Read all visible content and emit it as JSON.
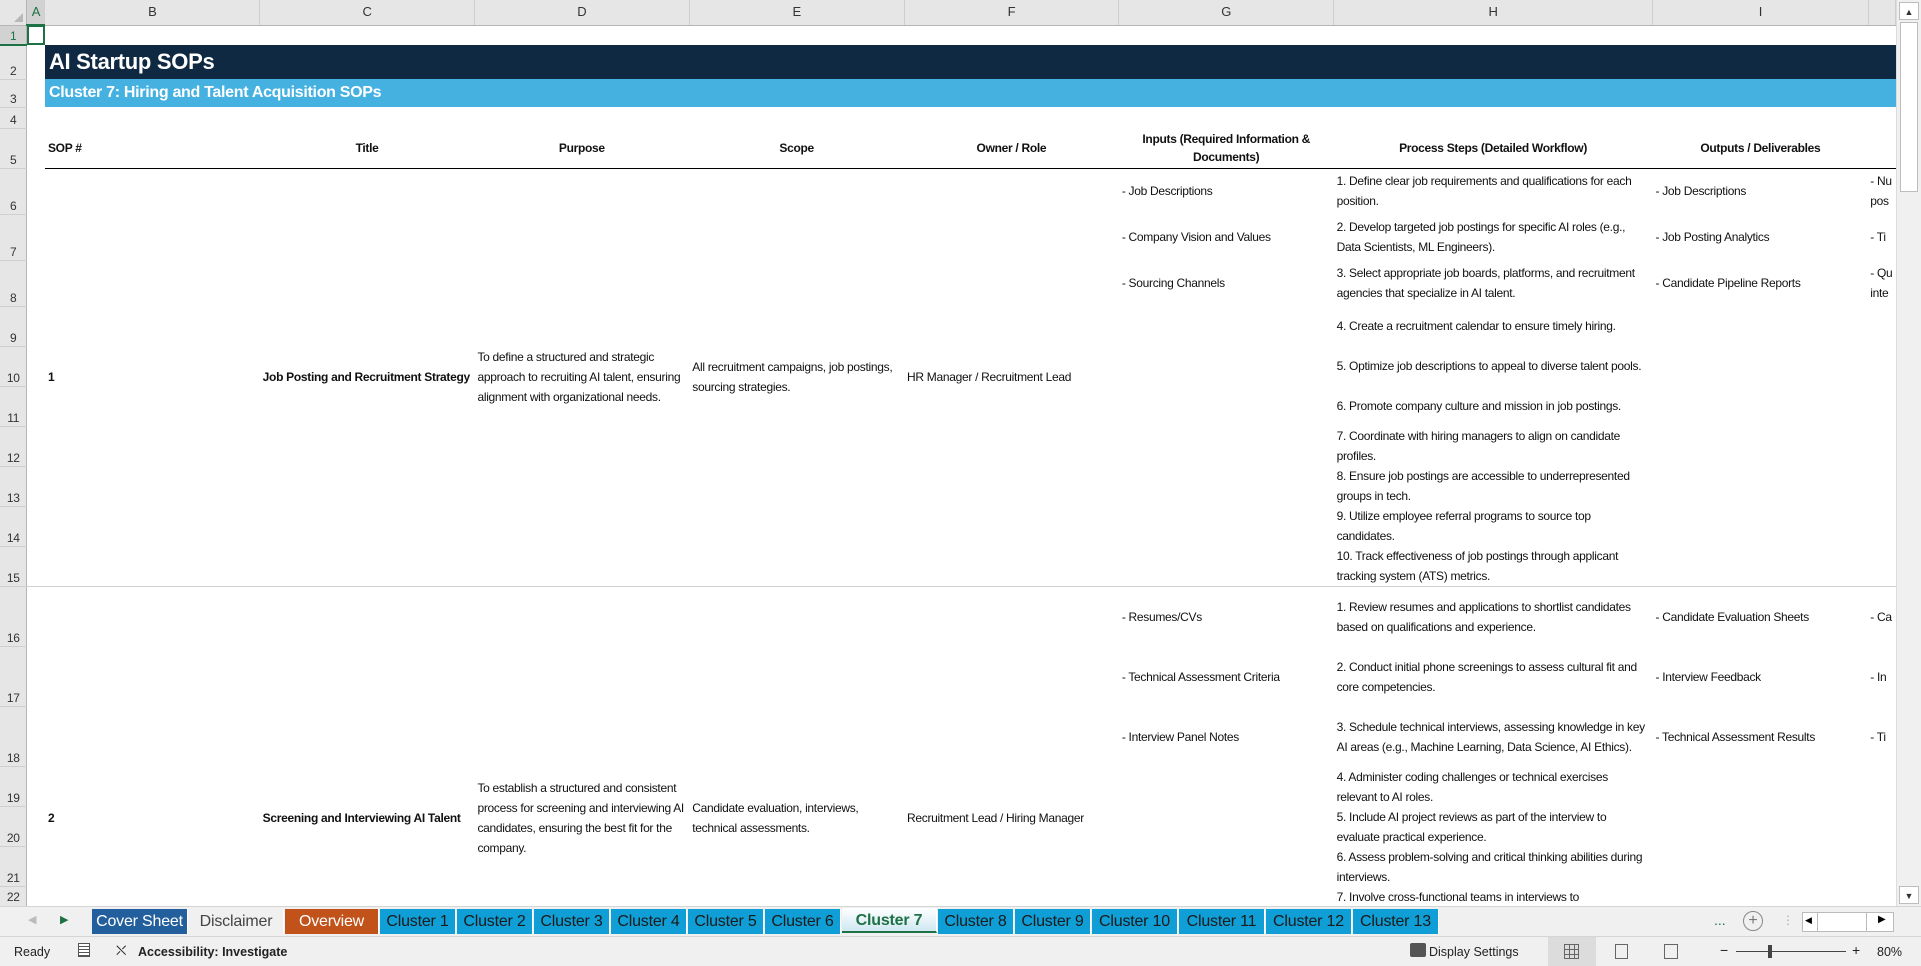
{
  "sheet": {
    "columns": [
      "A",
      "B",
      "C",
      "D",
      "E",
      "F",
      "G",
      "H",
      "I",
      ""
    ],
    "title": "AI Startup SOPs",
    "subtitle": "Cluster 7: Hiring and Talent Acquisition SOPs",
    "headers": [
      "SOP #",
      "Title",
      "Purpose",
      "Scope",
      "Owner / Role",
      "Inputs (Required Information & Documents)",
      "Process Steps (Detailed Workflow)",
      "Outputs / Deliverables"
    ],
    "sops": [
      {
        "number": "1",
        "title": "Job Posting and Recruitment Strategy",
        "purpose": "To define a structured and strategic approach to recruiting AI talent, ensuring alignment with organizational needs.",
        "scope": "All recruitment campaigns, job postings, sourcing strategies.",
        "owner": "HR Manager / Recruitment Lead",
        "inputs": [
          "- Job Descriptions",
          "- Company Vision and Values",
          "- Sourcing Channels"
        ],
        "steps": [
          "1. Define clear job requirements and qualifications for each position.",
          "2. Develop targeted job postings for specific AI roles (e.g., Data Scientists, ML Engineers).",
          "3. Select appropriate job boards, platforms, and recruitment agencies that specialize in AI talent.",
          "4. Create a recruitment calendar to ensure timely hiring.",
          "5. Optimize job descriptions to appeal to diverse talent pools.",
          "6. Promote company culture and mission in job postings.",
          "7. Coordinate with hiring managers to align on candidate profiles.",
          "8. Ensure job postings are accessible to underrepresented groups in tech.",
          "9. Utilize employee referral programs to source top candidates.",
          "10. Track effectiveness of job postings through applicant tracking system (ATS) metrics."
        ],
        "outputs": [
          "- Job Descriptions",
          "- Job Posting Analytics",
          "- Candidate Pipeline Reports"
        ],
        "next_col_fragments": [
          "- Nu\npos",
          "- Ti",
          "- Qu\ninte"
        ]
      },
      {
        "number": "2",
        "title": "Screening and Interviewing AI Talent",
        "purpose": "To establish a structured and consistent process for screening and interviewing AI candidates, ensuring the best fit for the company.",
        "scope": "Candidate evaluation, interviews, technical assessments.",
        "owner": "Recruitment Lead / Hiring Manager",
        "inputs": [
          "- Resumes/CVs",
          "- Technical Assessment Criteria",
          "- Interview Panel Notes"
        ],
        "steps": [
          "1. Review resumes and applications to shortlist candidates based on qualifications and experience.",
          "2. Conduct initial phone screenings to assess cultural fit and core competencies.",
          "3. Schedule technical interviews, assessing knowledge in key AI areas (e.g., Machine Learning, Data Science, AI Ethics).",
          "4. Administer coding challenges or technical exercises relevant to AI roles.",
          "5. Include AI project reviews as part of the interview to evaluate practical experience.",
          "6. Assess problem-solving and critical thinking abilities during interviews.",
          "7. Involve cross-functional teams in interviews to"
        ],
        "outputs": [
          "- Candidate Evaluation Sheets",
          "- Interview Feedback",
          "- Technical Assessment Results"
        ],
        "next_col_fragments": [
          "- Ca",
          "- In",
          "- Ti"
        ]
      }
    ]
  },
  "tabs": {
    "items": [
      {
        "label": "Cover Sheet",
        "color": "#235f9c",
        "text": "#ffffff"
      },
      {
        "label": "Disclaimer",
        "color": "#f0f0f0",
        "text": "#444444"
      },
      {
        "label": "Overview",
        "color": "#c0521a",
        "text": "#ffffff"
      },
      {
        "label": "Cluster 1"
      },
      {
        "label": "Cluster 2"
      },
      {
        "label": "Cluster 3"
      },
      {
        "label": "Cluster 4"
      },
      {
        "label": "Cluster 5"
      },
      {
        "label": "Cluster 6"
      },
      {
        "label": "Cluster 7",
        "active": true
      },
      {
        "label": "Cluster 8"
      },
      {
        "label": "Cluster 9"
      },
      {
        "label": "Cluster 10"
      },
      {
        "label": "Cluster 11"
      },
      {
        "label": "Cluster 12"
      },
      {
        "label": "Cluster 13"
      }
    ],
    "more": "...",
    "add_icon": "plus-circle-icon"
  },
  "status": {
    "ready": "Ready",
    "accessibility": "Accessibility: Investigate",
    "display_settings": "Display Settings",
    "zoom": "80%",
    "zoom_level_percent": 80
  },
  "colors": {
    "title_bg": "#0f2942",
    "subtitle_bg": "#45b1e1",
    "cluster_tab": "#0f9ed5",
    "active_tab_text": "#1e7145"
  }
}
